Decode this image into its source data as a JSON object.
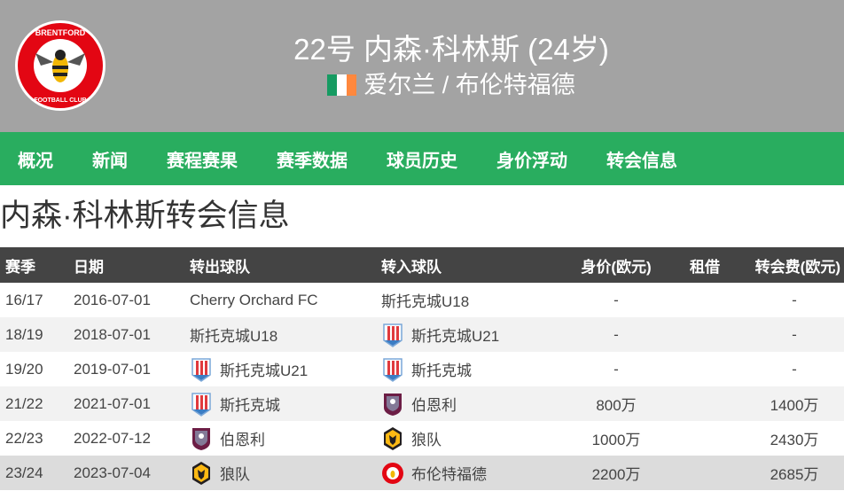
{
  "header": {
    "title": "22号 内森·科林斯 (24岁)",
    "subtitle": "爱尔兰 / 布伦特福德",
    "flag": "ireland-flag",
    "logo_text": "BRENTFORD FOOTBALL CLUB 1889"
  },
  "nav": [
    {
      "label": "概况"
    },
    {
      "label": "新闻"
    },
    {
      "label": "赛程赛果"
    },
    {
      "label": "赛季数据"
    },
    {
      "label": "球员历史"
    },
    {
      "label": "身价浮动"
    },
    {
      "label": "转会信息"
    }
  ],
  "page_title": "内森·科林斯转会信息",
  "colors": {
    "header": "#a3a3a3",
    "nav": "#29ad5f",
    "table_header": "#444444"
  },
  "table": {
    "headers": [
      "赛季",
      "日期",
      "转出球队",
      "转入球队",
      "身价(欧元)",
      "租借",
      "转会费(欧元)"
    ],
    "rows": [
      {
        "season": "16/17",
        "date": "2016-07-01",
        "from": "Cherry Orchard FC",
        "from_badge": "",
        "to": "斯托克城U18",
        "to_badge": "",
        "value": "-",
        "loan": "",
        "fee": "-"
      },
      {
        "season": "18/19",
        "date": "2018-07-01",
        "from": "斯托克城U18",
        "from_badge": "",
        "to": "斯托克城U21",
        "to_badge": "stoke",
        "value": "-",
        "loan": "",
        "fee": "-"
      },
      {
        "season": "19/20",
        "date": "2019-07-01",
        "from": "斯托克城U21",
        "from_badge": "stoke",
        "to": "斯托克城",
        "to_badge": "stoke",
        "value": "-",
        "loan": "",
        "fee": "-"
      },
      {
        "season": "21/22",
        "date": "2021-07-01",
        "from": "斯托克城",
        "from_badge": "stoke",
        "to": "伯恩利",
        "to_badge": "burnley",
        "value": "800万",
        "loan": "",
        "fee": "1400万"
      },
      {
        "season": "22/23",
        "date": "2022-07-12",
        "from": "伯恩利",
        "from_badge": "burnley",
        "to": "狼队",
        "to_badge": "wolves",
        "value": "1000万",
        "loan": "",
        "fee": "2430万"
      },
      {
        "season": "23/24",
        "date": "2023-07-04",
        "from": "狼队",
        "from_badge": "wolves",
        "to": "布伦特福德",
        "to_badge": "brentford",
        "value": "2200万",
        "loan": "",
        "fee": "2685万"
      }
    ]
  }
}
